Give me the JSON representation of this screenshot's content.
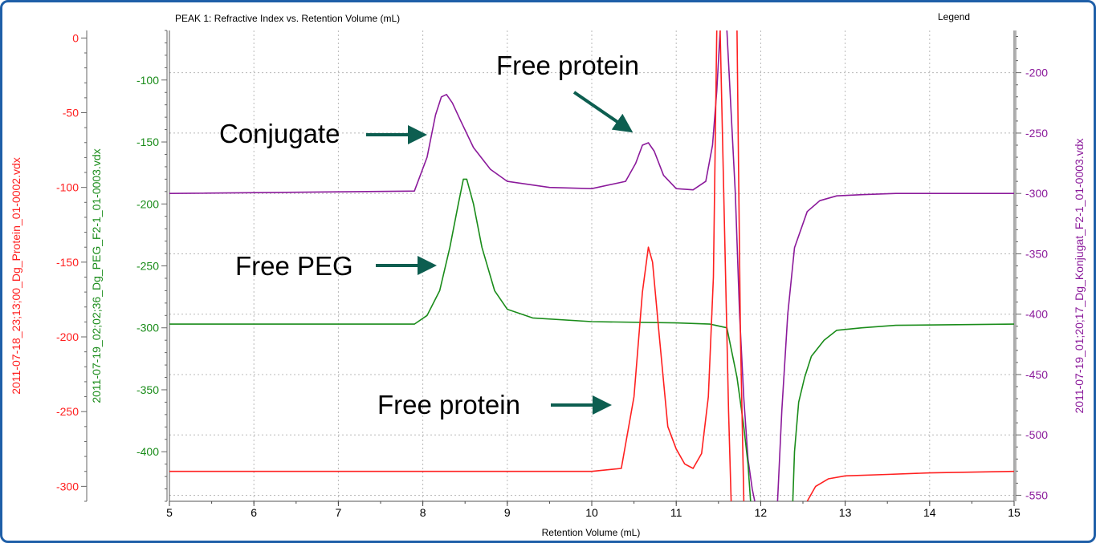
{
  "chart_data": {
    "type": "line",
    "title": "PEAK 1: Refractive Index vs. Retention Volume (mL)",
    "legend_label": "Legend",
    "xlabel": "Retention Volume (mL)",
    "xlim": [
      5,
      15
    ],
    "x_ticks": [
      5,
      6,
      7,
      8,
      9,
      10,
      11,
      12,
      13,
      14,
      15
    ],
    "grid": true,
    "colors": {
      "red": "#ff2020",
      "green": "#1a8c1a",
      "purple": "#8b1a9b",
      "arrow": "#0d5e50"
    },
    "axes": {
      "red": {
        "label": "2011-07-18_23;13;00_Dg_Protein_01-0002.vdx",
        "ylim": [
          -310,
          5
        ],
        "ticks": [
          0,
          -50,
          -100,
          -150,
          -200,
          -250,
          -300
        ]
      },
      "green": {
        "label": "2011-07-19_02;02;36_Dg_PEG_F2-1_01-0003.vdx",
        "ylim": [
          -440,
          -60
        ],
        "ticks": [
          -100,
          -150,
          -200,
          -250,
          -300,
          -350,
          -400
        ]
      },
      "purple": {
        "label": "2011-07-19_01;20;17_Dg_Konjugat_F2-1_01-0003.vdx",
        "ylim": [
          -555,
          -165
        ],
        "ticks": [
          -200,
          -250,
          -300,
          -350,
          -400,
          -450,
          -500,
          -550
        ]
      }
    },
    "series": [
      {
        "color_key": "purple",
        "axis": "purple",
        "x": [
          5,
          7.9,
          8.05,
          8.15,
          8.22,
          8.28,
          8.35,
          8.45,
          8.6,
          8.8,
          9.0,
          9.5,
          10.0,
          10.4,
          10.52,
          10.6,
          10.67,
          10.74,
          10.85,
          11.0,
          11.2,
          11.35,
          11.43,
          11.48,
          11.52
        ],
        "y": [
          -300,
          -298,
          -270,
          -235,
          -220,
          -218,
          -225,
          -240,
          -262,
          -280,
          -290,
          -295,
          -296,
          -290,
          -275,
          -260,
          -258,
          -265,
          -285,
          -296,
          -297,
          -290,
          -260,
          -215,
          -165
        ]
      },
      {
        "color_key": "purple",
        "axis": "purple",
        "x": [
          11.6,
          11.7,
          11.75,
          11.8,
          11.85,
          11.9,
          11.93
        ],
        "y": [
          -165,
          -300,
          -400,
          -470,
          -520,
          -545,
          -555
        ]
      },
      {
        "color_key": "purple",
        "axis": "purple",
        "x": [
          12.2,
          12.25,
          12.32,
          12.4,
          12.55,
          12.7,
          12.9,
          13.2,
          13.6,
          15
        ],
        "y": [
          -555,
          -480,
          -400,
          -345,
          -315,
          -306,
          -302,
          -301,
          -300,
          -300
        ]
      },
      {
        "color_key": "green",
        "axis": "green",
        "x": [
          5,
          7.9,
          8.05,
          8.2,
          8.32,
          8.42,
          8.48,
          8.52,
          8.6,
          8.7,
          8.85,
          9.0,
          9.3,
          10.0,
          11.0,
          11.4,
          11.6,
          11.72,
          11.8,
          11.85,
          11.88
        ],
        "y": [
          -297,
          -297,
          -290,
          -270,
          -235,
          -200,
          -180,
          -180,
          -200,
          -235,
          -270,
          -285,
          -292,
          -295,
          -296,
          -297,
          -300,
          -340,
          -380,
          -410,
          -440
        ]
      },
      {
        "color_key": "green",
        "axis": "green",
        "x": [
          12.38,
          12.4,
          12.45,
          12.52,
          12.6,
          12.75,
          12.9,
          13.2,
          13.6,
          15
        ],
        "y": [
          -440,
          -400,
          -360,
          -340,
          -323,
          -310,
          -302,
          -300,
          -298,
          -297
        ]
      },
      {
        "color_key": "red",
        "axis": "red",
        "x": [
          5,
          10.0,
          10.35,
          10.5,
          10.6,
          10.67,
          10.72,
          10.8,
          10.9,
          11.0,
          11.1,
          11.2,
          11.3,
          11.38,
          11.44,
          11.48
        ],
        "y": [
          -290,
          -290,
          -288,
          -240,
          -170,
          -140,
          -150,
          -200,
          -260,
          -275,
          -285,
          -288,
          -278,
          -240,
          -160,
          5
        ]
      },
      {
        "color_key": "red",
        "axis": "red",
        "x": [
          11.52,
          11.62,
          11.65
        ],
        "y": [
          5,
          -250,
          -310
        ]
      },
      {
        "color_key": "red",
        "axis": "red",
        "x": [
          11.72,
          11.76,
          11.8
        ],
        "y": [
          5,
          -200,
          -310
        ]
      },
      {
        "color_key": "red",
        "axis": "red",
        "x": [
          12.55,
          12.65,
          12.8,
          13.0,
          13.5,
          14.0,
          15
        ],
        "y": [
          -310,
          -300,
          -295,
          -293,
          -292,
          -291,
          -290
        ]
      }
    ],
    "annotations": [
      {
        "text": "Free protein",
        "target_x": 10.67,
        "axis": "purple"
      },
      {
        "text": "Conjugate",
        "target_x": 8.15,
        "axis": "purple"
      },
      {
        "text": "Free PEG",
        "target_x": 8.3,
        "axis": "green"
      },
      {
        "text": "Free protein",
        "target_x": 10.5,
        "axis": "red"
      }
    ]
  }
}
